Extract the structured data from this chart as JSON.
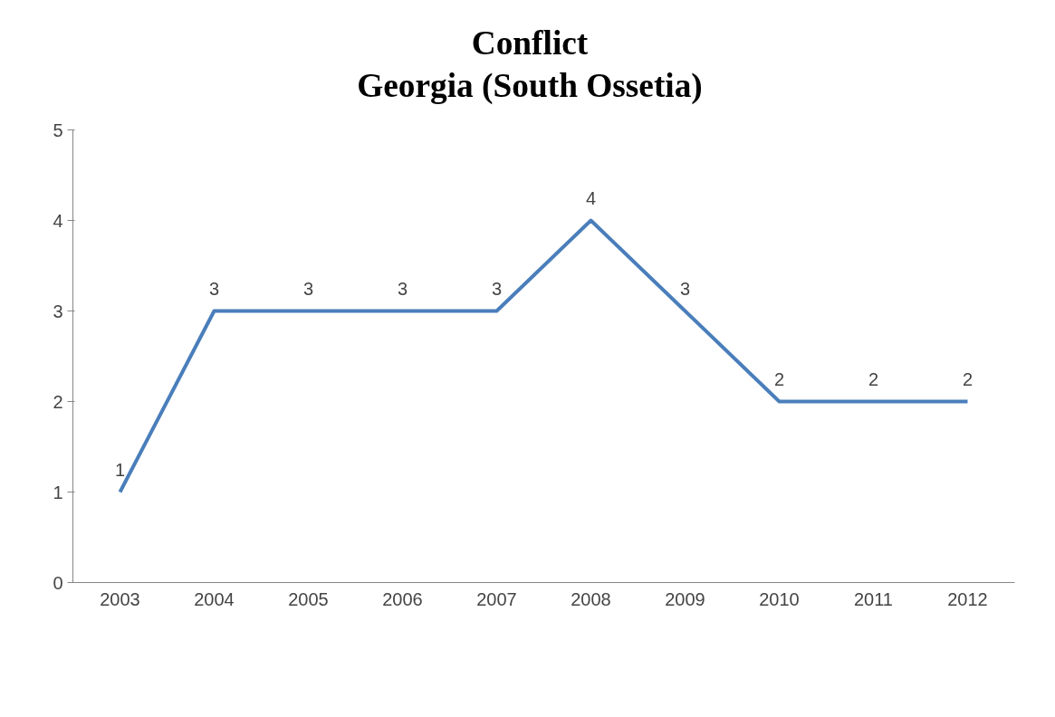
{
  "chart_data": {
    "type": "line",
    "title": "Conflict\nGeorgia (South Ossetia)",
    "categories": [
      "2003",
      "2004",
      "2005",
      "2006",
      "2007",
      "2008",
      "2009",
      "2010",
      "2011",
      "2012"
    ],
    "series": [
      {
        "color": "#4a7ebb",
        "values": [
          1,
          3,
          3,
          3,
          3,
          4,
          3,
          2,
          2,
          2
        ]
      }
    ],
    "ylim": [
      0,
      5
    ],
    "yticks": [
      0,
      1,
      2,
      3,
      4,
      5
    ],
    "grid": false,
    "data_labels": true,
    "marker": "none",
    "line_style": "solid"
  }
}
